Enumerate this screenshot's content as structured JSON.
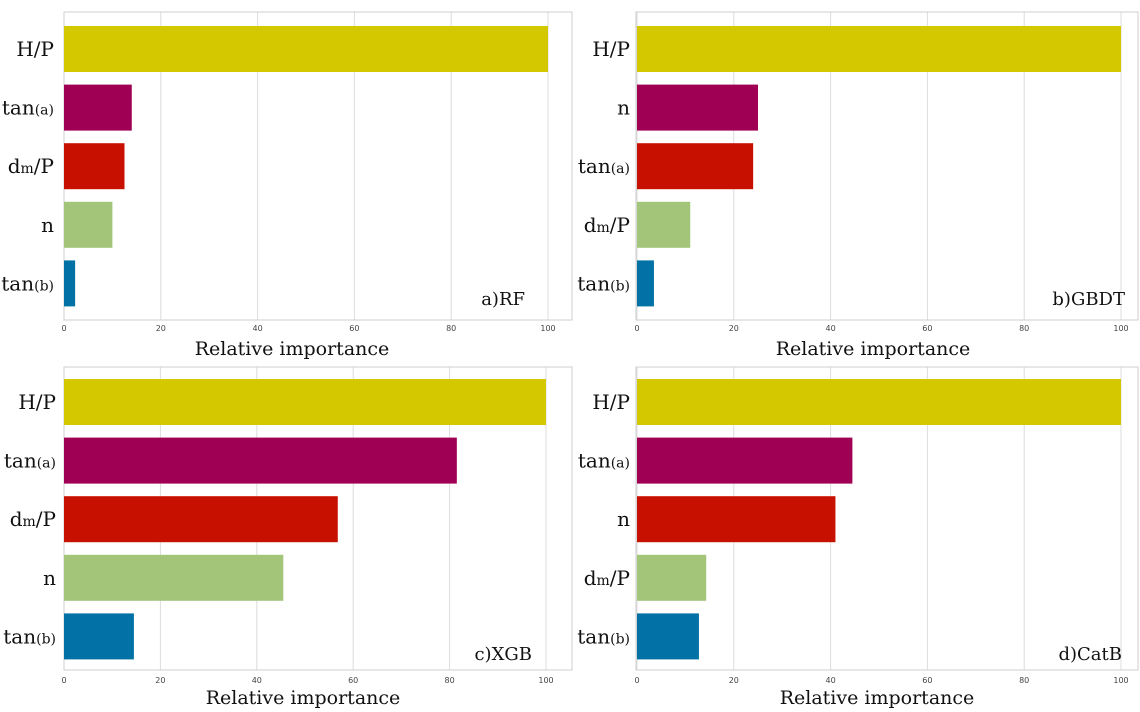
{
  "colors": {
    "c0": "#d4c800",
    "c1": "#a00054",
    "c2": "#c81000",
    "c3": "#a2c57a",
    "c4": "#0272a6"
  },
  "chart_data": [
    {
      "type": "bar",
      "orientation": "horizontal",
      "panel_label": "a)RF",
      "xlabel": "Relative importance",
      "xlim": [
        0,
        100
      ],
      "xticks": [
        "0",
        "20",
        "40",
        "60",
        "80",
        "100"
      ],
      "grid": true,
      "categories": [
        {
          "base": "H/P",
          "sub": "",
          "after": ""
        },
        {
          "base": "tan",
          "sub": "(a)",
          "after": ""
        },
        {
          "base": "d",
          "sub": "m",
          "after": "/P"
        },
        {
          "base": "n",
          "sub": "",
          "after": ""
        },
        {
          "base": "tan",
          "sub": "(b)",
          "after": ""
        }
      ],
      "values": [
        100,
        14,
        12.5,
        10,
        2.3
      ],
      "bar_colors": [
        "#d4c800",
        "#a00054",
        "#c81000",
        "#a2c57a",
        "#0272a6"
      ]
    },
    {
      "type": "bar",
      "orientation": "horizontal",
      "panel_label": "b)GBDT",
      "xlabel": "Relative importance",
      "xlim": [
        0,
        100
      ],
      "xticks": [
        "0",
        "20",
        "40",
        "60",
        "80",
        "100"
      ],
      "grid": true,
      "categories": [
        {
          "base": "H/P",
          "sub": "",
          "after": ""
        },
        {
          "base": "n",
          "sub": "",
          "after": ""
        },
        {
          "base": "tan",
          "sub": "(a)",
          "after": ""
        },
        {
          "base": "d",
          "sub": "m",
          "after": "/P"
        },
        {
          "base": "tan",
          "sub": "(b)",
          "after": ""
        }
      ],
      "values": [
        100,
        25,
        24,
        11,
        3.5
      ],
      "bar_colors": [
        "#d4c800",
        "#a00054",
        "#c81000",
        "#a2c57a",
        "#0272a6"
      ]
    },
    {
      "type": "bar",
      "orientation": "horizontal",
      "panel_label": "c)XGB",
      "xlabel": "Relative importance",
      "xlim": [
        0,
        100
      ],
      "xticks": [
        "0",
        "20",
        "40",
        "60",
        "80",
        "100"
      ],
      "grid": true,
      "categories": [
        {
          "base": "H/P",
          "sub": "",
          "after": ""
        },
        {
          "base": "tan",
          "sub": "(a)",
          "after": ""
        },
        {
          "base": "d",
          "sub": "m",
          "after": "/P"
        },
        {
          "base": "n",
          "sub": "",
          "after": ""
        },
        {
          "base": "tan",
          "sub": "(b)",
          "after": ""
        }
      ],
      "values": [
        100,
        81.5,
        56.8,
        45.5,
        14.5
      ],
      "bar_colors": [
        "#d4c800",
        "#a00054",
        "#c81000",
        "#a2c57a",
        "#0272a6"
      ]
    },
    {
      "type": "bar",
      "orientation": "horizontal",
      "panel_label": "d)CatB",
      "xlabel": "Relative importance",
      "xlim": [
        0,
        100
      ],
      "xticks": [
        "0",
        "20",
        "40",
        "60",
        "80",
        "100"
      ],
      "grid": true,
      "categories": [
        {
          "base": "H/P",
          "sub": "",
          "after": ""
        },
        {
          "base": "tan",
          "sub": "(a)",
          "after": ""
        },
        {
          "base": "n",
          "sub": "",
          "after": ""
        },
        {
          "base": "d",
          "sub": "m",
          "after": "/P"
        },
        {
          "base": "tan",
          "sub": "(b)",
          "after": ""
        }
      ],
      "values": [
        100,
        44.5,
        41,
        14.3,
        12.8
      ],
      "bar_colors": [
        "#d4c800",
        "#a00054",
        "#c81000",
        "#a2c57a",
        "#0272a6"
      ]
    }
  ]
}
